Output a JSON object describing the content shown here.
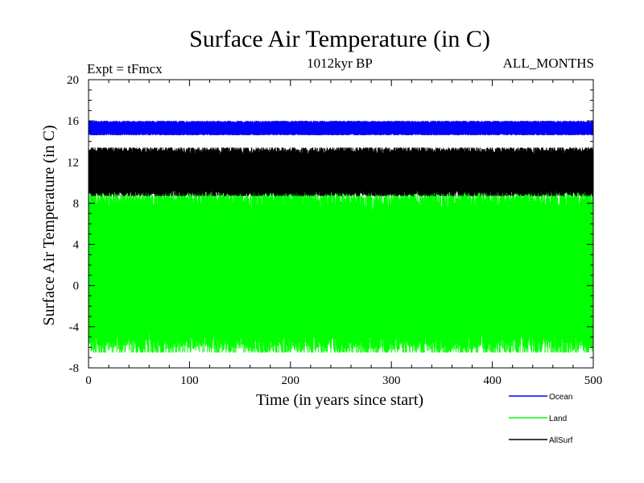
{
  "chart_data": {
    "type": "line",
    "title": "Surface Air Temperature (in C)",
    "subtitle": "1012kyr BP",
    "expt_label": "Expt = tFmcx",
    "months_label": "ALL_MONTHS",
    "xlabel": "Time (in years since start)",
    "ylabel": "Surface Air Temperature (in C)",
    "xlim": [
      0,
      500
    ],
    "ylim": [
      -8,
      20
    ],
    "xticks": [
      0,
      100,
      200,
      300,
      400,
      500
    ],
    "yticks": [
      -8,
      -4,
      0,
      4,
      8,
      12,
      16,
      20
    ],
    "grid": false,
    "legend_position": "bottom-right",
    "series": [
      {
        "name": "Ocean",
        "color": "#0000ff",
        "min_approx": 14.6,
        "max_approx": 16.0,
        "mean_approx": 15.3
      },
      {
        "name": "Land",
        "color": "#00ff00",
        "min_approx": -6.5,
        "max_approx": 9.3,
        "mean_approx": 1.3
      },
      {
        "name": "AllSurf",
        "color": "#000000",
        "min_approx": 8.7,
        "max_approx": 13.4,
        "mean_approx": 11.0
      }
    ]
  }
}
